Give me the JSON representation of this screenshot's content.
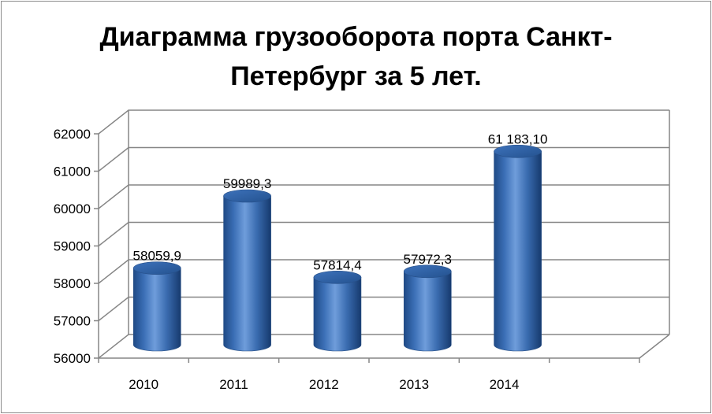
{
  "chart_data": {
    "type": "bar",
    "title": "Диаграмма грузооборота порта Санкт-\nПетербург за 5 лет.",
    "categories": [
      "2010",
      "2011",
      "2012",
      "2013",
      "2014"
    ],
    "values": [
      58059.9,
      59989.3,
      57814.4,
      57972.3,
      61183.1
    ],
    "data_labels": [
      "58059,9",
      "59989,3",
      "57814,4",
      "57972,3",
      "61 183,10"
    ],
    "y_ticks": [
      "56000",
      "57000",
      "58000",
      "59000",
      "60000",
      "61000",
      "62000"
    ],
    "ylim": [
      56000,
      62000
    ],
    "xlabel": "",
    "ylabel": "",
    "grid": true,
    "legend": "none",
    "bar_color": "#4f81bd",
    "style": "3d-cylinder"
  }
}
